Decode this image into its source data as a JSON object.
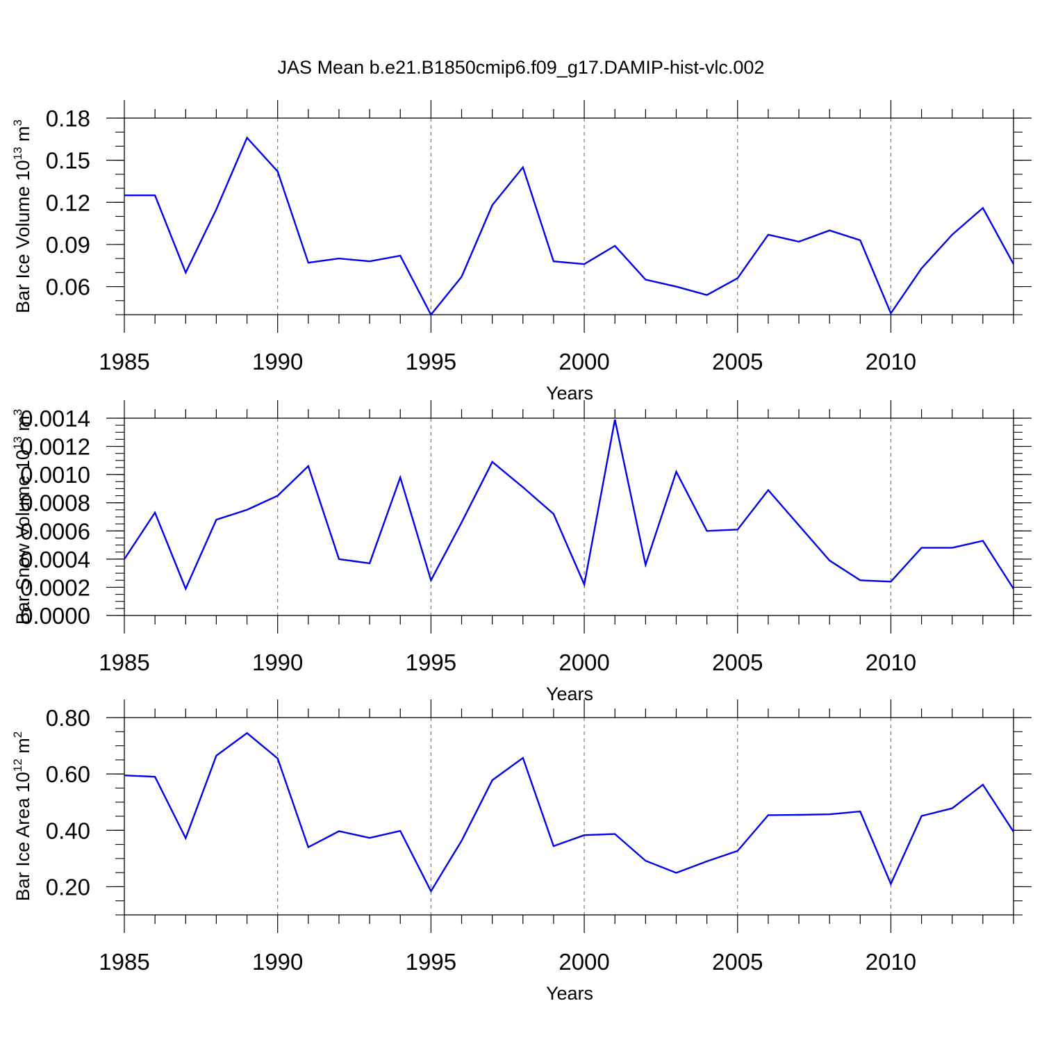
{
  "title": "JAS Mean b.e21.B1850cmip6.f09_g17.DAMIP-hist-vlc.002",
  "chart_data": [
    {
      "type": "line",
      "title": "",
      "xlabel": "Years",
      "ylabel": "Bar Ice Volume 10",
      "ylabel_exp": "13",
      "ylabel_unit": " m",
      "ylabel_unit_exp": "3",
      "xlim": [
        1985,
        2014
      ],
      "ylim": [
        0.04,
        0.18
      ],
      "yticks": [
        0.06,
        0.09,
        0.12,
        0.15,
        0.18
      ],
      "ytick_labels": [
        "0.06",
        "0.09",
        "0.12",
        "0.15",
        "0.18"
      ],
      "yminor_step": 0.01,
      "xticks": [
        1985,
        1990,
        1995,
        2000,
        2005,
        2010
      ],
      "xtick_labels": [
        "1985",
        "1990",
        "1995",
        "2000",
        "2005",
        "2010"
      ],
      "grid": "vertical dashed at major x ticks",
      "color": "#0000ee",
      "x": [
        1985,
        1986,
        1987,
        1988,
        1989,
        1990,
        1991,
        1992,
        1993,
        1994,
        1995,
        1996,
        1997,
        1998,
        1999,
        2000,
        2001,
        2002,
        2003,
        2004,
        2005,
        2006,
        2007,
        2008,
        2009,
        2010,
        2011,
        2012,
        2013,
        2014
      ],
      "values": [
        0.125,
        0.125,
        0.07,
        0.115,
        0.166,
        0.142,
        0.077,
        0.08,
        0.078,
        0.082,
        0.04,
        0.067,
        0.118,
        0.145,
        0.078,
        0.076,
        0.089,
        0.065,
        0.06,
        0.054,
        0.066,
        0.097,
        0.092,
        0.1,
        0.093,
        0.041,
        0.073,
        0.097,
        0.116,
        0.076
      ]
    },
    {
      "type": "line",
      "title": "",
      "xlabel": "Years",
      "ylabel": "Bar Snow Volume 10",
      "ylabel_exp": "13",
      "ylabel_unit": " m",
      "ylabel_unit_exp": "3",
      "xlim": [
        1985,
        2014
      ],
      "ylim": [
        0.0,
        0.0014
      ],
      "yticks": [
        0.0,
        0.0002,
        0.0004,
        0.0006,
        0.0008,
        0.001,
        0.0012,
        0.0014
      ],
      "ytick_labels": [
        "0.0000",
        "0.0002",
        "0.0004",
        "0.0006",
        "0.0008",
        "0.0010",
        "0.0012",
        "0.0014"
      ],
      "yminor_step": 5e-05,
      "xticks": [
        1985,
        1990,
        1995,
        2000,
        2005,
        2010
      ],
      "xtick_labels": [
        "1985",
        "1990",
        "1995",
        "2000",
        "2005",
        "2010"
      ],
      "grid": "vertical dashed at major x ticks",
      "color": "#0000ee",
      "x": [
        1985,
        1986,
        1987,
        1988,
        1989,
        1990,
        1991,
        1992,
        1993,
        1994,
        1995,
        1996,
        1997,
        1998,
        1999,
        2000,
        2001,
        2002,
        2003,
        2004,
        2005,
        2006,
        2007,
        2008,
        2009,
        2010,
        2011,
        2012,
        2013,
        2014
      ],
      "values": [
        0.0004,
        0.00073,
        0.00019,
        0.00068,
        0.00075,
        0.00085,
        0.00106,
        0.0004,
        0.00037,
        0.00098,
        0.00025,
        0.00066,
        0.00109,
        0.00091,
        0.00072,
        0.00022,
        0.00139,
        0.00036,
        0.00102,
        0.0006,
        0.00061,
        0.00089,
        0.00064,
        0.00039,
        0.00025,
        0.00024,
        0.00048,
        0.00048,
        0.00053,
        0.00019
      ]
    },
    {
      "type": "line",
      "title": "",
      "xlabel": "Years",
      "ylabel": "Bar Ice Area 10",
      "ylabel_exp": "12",
      "ylabel_unit": " m",
      "ylabel_unit_exp": "2",
      "xlim": [
        1985,
        2014
      ],
      "ylim": [
        0.1,
        0.8
      ],
      "yticks": [
        0.2,
        0.4,
        0.6,
        0.8
      ],
      "ytick_labels": [
        "0.20",
        "0.40",
        "0.60",
        "0.80"
      ],
      "yminor_step": 0.05,
      "xticks": [
        1985,
        1990,
        1995,
        2000,
        2005,
        2010
      ],
      "xtick_labels": [
        "1985",
        "1990",
        "1995",
        "2000",
        "2005",
        "2010"
      ],
      "grid": "vertical dashed at major x ticks",
      "color": "#0000ee",
      "x": [
        1985,
        1986,
        1987,
        1988,
        1989,
        1990,
        1991,
        1992,
        1993,
        1994,
        1995,
        1996,
        1997,
        1998,
        1999,
        2000,
        2001,
        2002,
        2003,
        2004,
        2005,
        2006,
        2007,
        2008,
        2009,
        2010,
        2011,
        2012,
        2013,
        2014
      ],
      "values": [
        0.595,
        0.59,
        0.372,
        0.665,
        0.745,
        0.655,
        0.34,
        0.397,
        0.373,
        0.398,
        0.184,
        0.363,
        0.578,
        0.657,
        0.344,
        0.383,
        0.387,
        0.292,
        0.249,
        0.29,
        0.327,
        0.454,
        0.455,
        0.457,
        0.467,
        0.21,
        0.451,
        0.478,
        0.562,
        0.395
      ]
    }
  ]
}
